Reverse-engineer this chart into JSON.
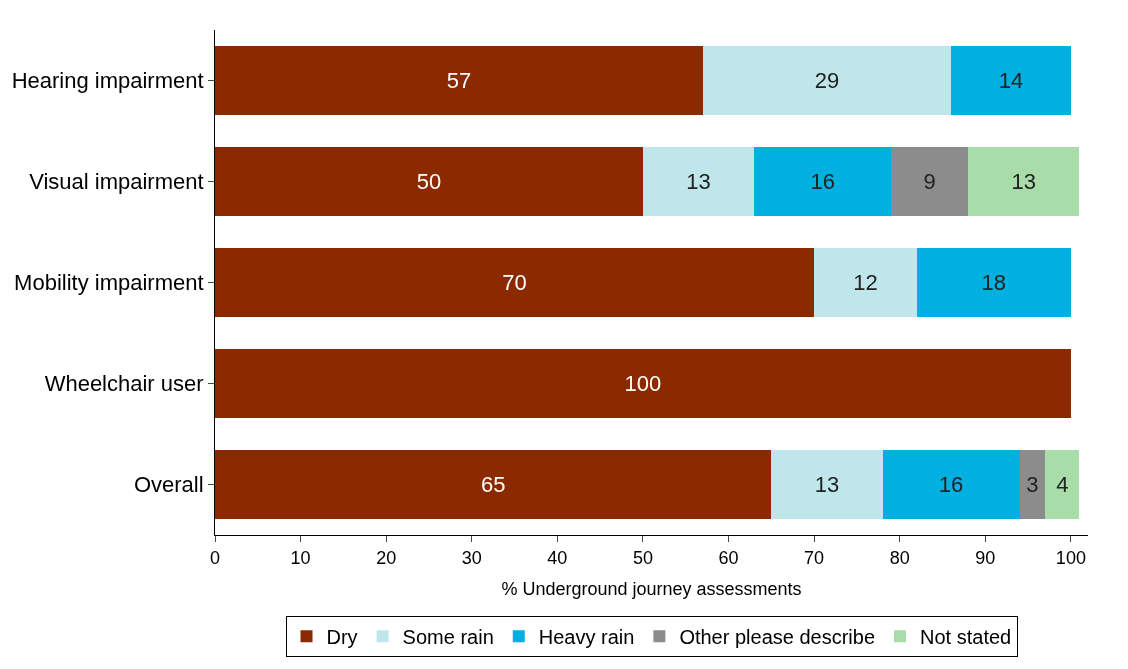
{
  "chart_data": {
    "type": "bar",
    "orientation": "horizontal",
    "stacked": true,
    "data_labels": true,
    "grid": false,
    "legend": "bottom",
    "xlabel": "% Underground journey assessments",
    "categories": [
      "Hearing impairment",
      "Visual impairment",
      "Mobility impairment",
      "Wheelchair user",
      "Overall"
    ],
    "xlim": [
      0,
      102
    ],
    "xticks": [
      0,
      10,
      20,
      30,
      40,
      50,
      60,
      70,
      80,
      90,
      100
    ],
    "series": [
      {
        "name": "Dry",
        "color": "#8b2a00",
        "values": [
          57,
          50,
          70,
          100,
          65
        ]
      },
      {
        "name": "Some rain",
        "color": "#bfe6ea",
        "values": [
          29,
          13,
          12,
          null,
          13
        ]
      },
      {
        "name": "Heavy rain",
        "color": "#00b0e0",
        "values": [
          14,
          16,
          18,
          null,
          16
        ]
      },
      {
        "name": "Other please describe",
        "color": "#8c8c8c",
        "values": [
          null,
          9,
          null,
          null,
          3
        ]
      },
      {
        "name": "Not stated",
        "color": "#a8dca8",
        "values": [
          null,
          13,
          null,
          null,
          4
        ]
      }
    ]
  }
}
